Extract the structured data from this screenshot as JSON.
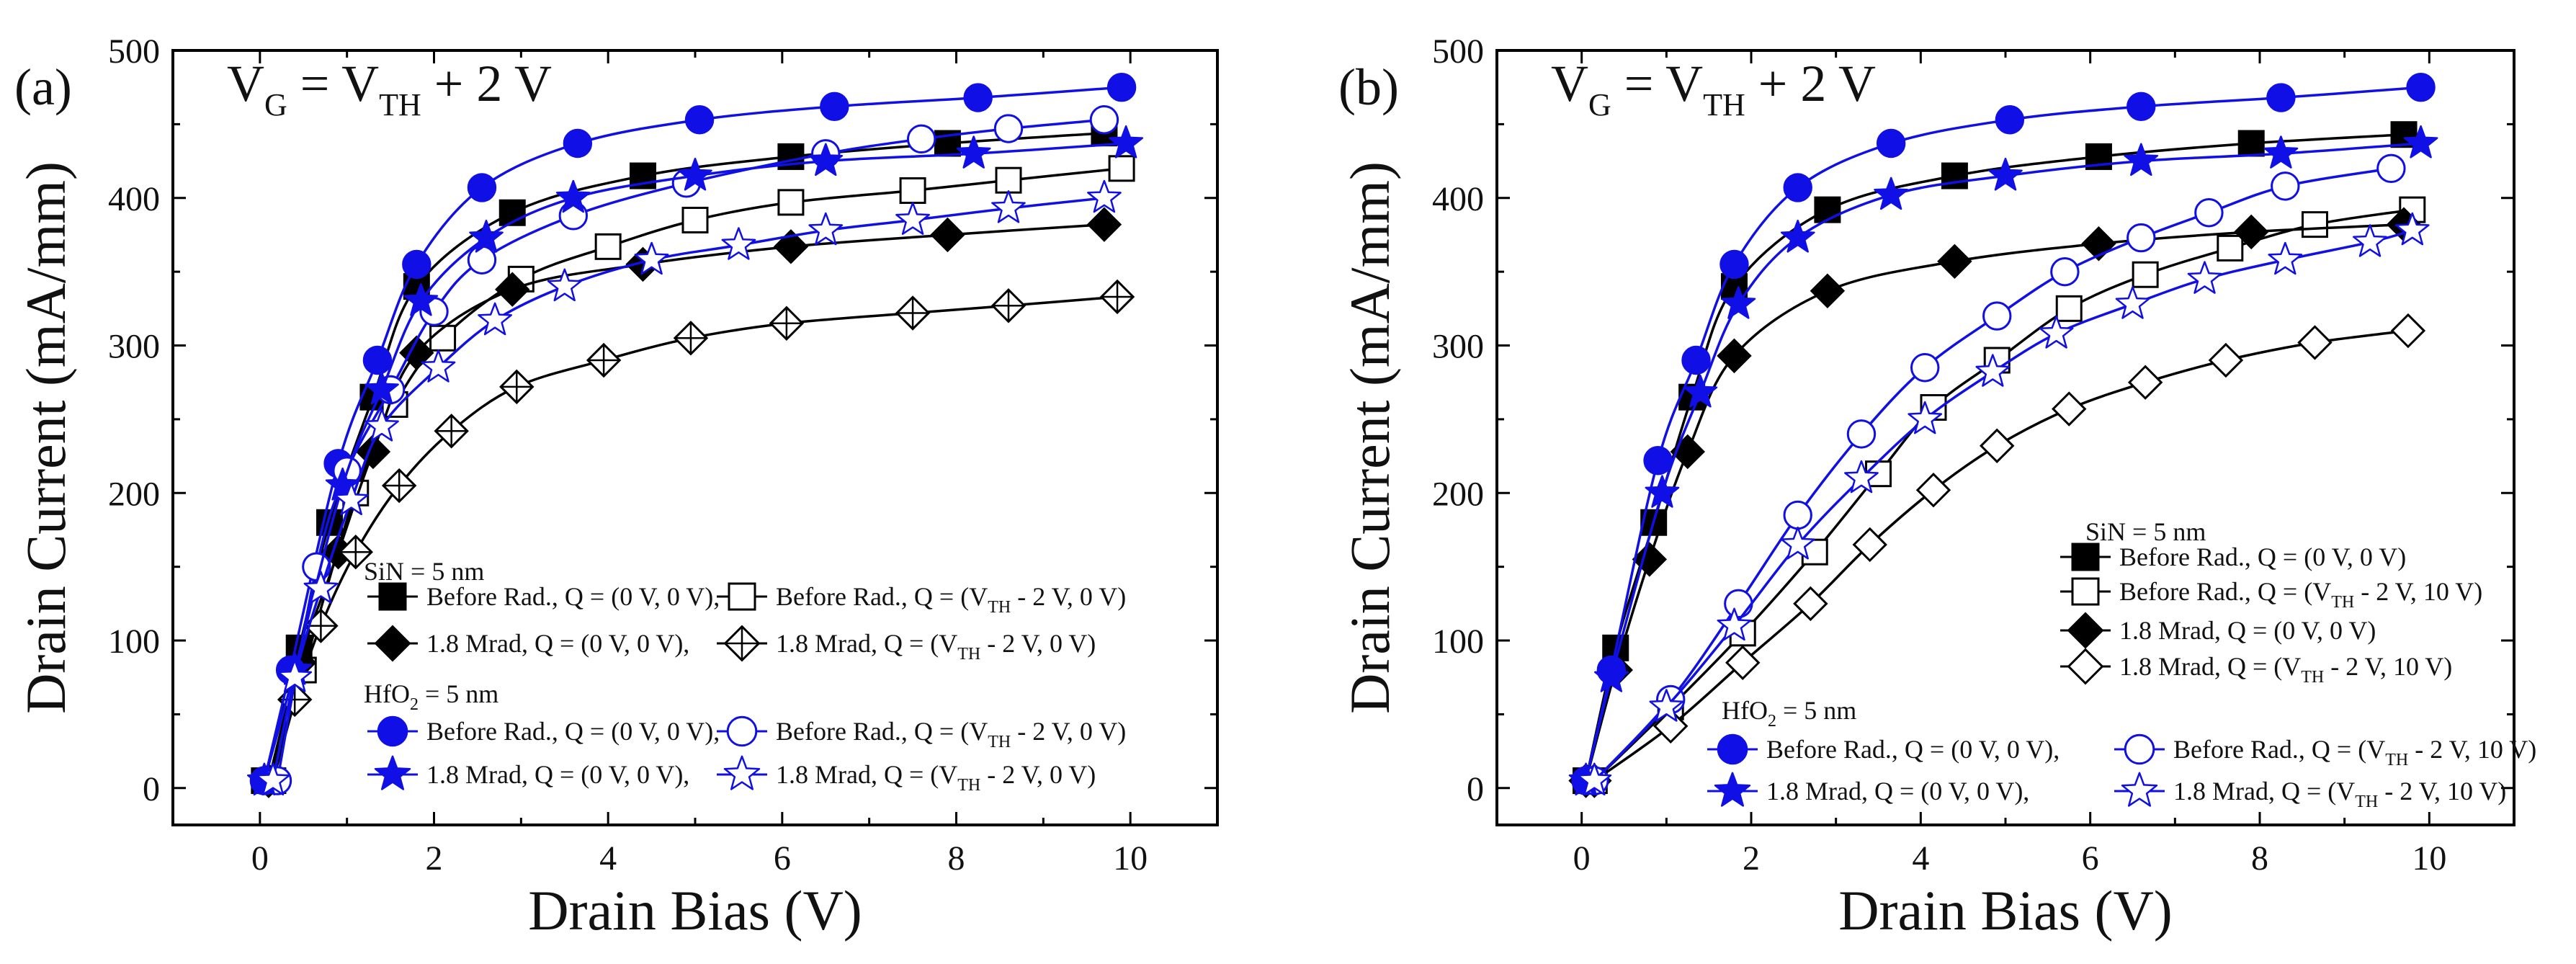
{
  "colors": {
    "black": "#000000",
    "blue": "#1010e6"
  },
  "chart_data": [
    {
      "type": "line",
      "panel": "(a)",
      "cond": {
        "pre": "V",
        "sub1": "G",
        "mid": " = V",
        "sub2": "TH",
        "post": " + 2 V"
      },
      "xlabel": "Drain Bias (V)",
      "ylabel": "Drain Current (mA/mm)",
      "xlim": [
        -1,
        11
      ],
      "ylim": [
        -25,
        500
      ],
      "xticks": [
        "0",
        "2",
        "4",
        "6",
        "8",
        "10"
      ],
      "yticks": [
        "0",
        "100",
        "200",
        "300",
        "400",
        "500"
      ],
      "legend": {
        "title1": "SiN = 5 nm",
        "title2": {
          "pre": "HfO",
          "sub": "2",
          "post": " = 5 nm"
        },
        "entries": [
          {
            "pre": "Before Rad., Q = (0 V, 0 V),",
            "sub": "",
            "post": ""
          },
          {
            "pre": "Before Rad., Q = (V",
            "sub": "TH",
            "post": " - 2 V, 0 V)"
          },
          {
            "pre": "1.8 Mrad, Q = (0 V, 0 V),",
            "sub": "",
            "post": ""
          },
          {
            "pre": "1.8 Mrad, Q = (V",
            "sub": "TH",
            "post": " - 2 V, 0 V)"
          },
          {
            "pre": "Before Rad., Q = (0 V, 0 V),",
            "sub": "",
            "post": ""
          },
          {
            "pre": "Before Rad., Q = (V",
            "sub": "TH",
            "post": " - 2 V, 0 V)"
          },
          {
            "pre": "1.8 Mrad, Q = (0 V, 0 V),",
            "sub": "",
            "post": ""
          },
          {
            "pre": "1.8 Mrad, Q = (V",
            "sub": "TH",
            "post": " - 2 V, 0 V)"
          }
        ]
      },
      "series": [
        {
          "name": "SiN Before Rad., Q = (0 V, 0 V)",
          "color": "black",
          "marker": "square",
          "filled": true,
          "x": [
            0.05,
            0.45,
            0.8,
            1.3,
            1.8,
            2.9,
            4.4,
            6.1,
            7.9,
            9.7
          ],
          "y": [
            5,
            95,
            180,
            265,
            340,
            390,
            415,
            428,
            437,
            444
          ]
        },
        {
          "name": "SiN Before Rad., Q = (VTH - 2 V, 0 V)",
          "color": "black",
          "marker": "square",
          "filled": false,
          "x": [
            0.15,
            0.5,
            1.1,
            1.55,
            2.1,
            3.0,
            4.0,
            5.0,
            6.1,
            7.5,
            8.6,
            9.9
          ],
          "y": [
            5,
            80,
            200,
            260,
            305,
            345,
            367,
            385,
            397,
            405,
            412,
            420
          ]
        },
        {
          "name": "SiN 1.8 Mrad, Q = (0 V, 0 V)",
          "color": "black",
          "marker": "diamond",
          "filled": true,
          "x": [
            0.1,
            0.45,
            0.9,
            1.3,
            1.8,
            2.9,
            4.4,
            6.1,
            7.9,
            9.7
          ],
          "y": [
            5,
            85,
            160,
            228,
            295,
            338,
            355,
            367,
            375,
            382
          ]
        },
        {
          "name": "SiN 1.8 Mrad, Q = (VTH - 2 V, 0 V)",
          "color": "black",
          "marker": "diamond-cross",
          "filled": false,
          "x": [
            0.1,
            0.4,
            0.7,
            1.1,
            1.6,
            2.2,
            2.95,
            3.95,
            4.95,
            6.05,
            7.5,
            8.6,
            9.85
          ],
          "y": [
            5,
            60,
            110,
            160,
            205,
            242,
            272,
            290,
            305,
            315,
            322,
            327,
            333
          ]
        },
        {
          "name": "HfO2 Before Rad., Q = (0 V, 0 V)",
          "color": "blue",
          "marker": "circle",
          "filled": true,
          "x": [
            0.05,
            0.35,
            0.9,
            1.35,
            1.8,
            2.55,
            3.65,
            5.05,
            6.6,
            8.25,
            9.9
          ],
          "y": [
            5,
            80,
            220,
            290,
            355,
            407,
            437,
            453,
            462,
            468,
            475
          ]
        },
        {
          "name": "HfO2 Before Rad., Q = (VTH - 2 V, 0 V)",
          "color": "blue",
          "marker": "circle",
          "filled": false,
          "x": [
            0.2,
            0.65,
            1.0,
            1.5,
            2.0,
            2.55,
            3.6,
            4.9,
            6.5,
            7.6,
            8.6,
            9.7
          ],
          "y": [
            5,
            150,
            215,
            270,
            323,
            358,
            388,
            410,
            430,
            440,
            447,
            453
          ]
        },
        {
          "name": "HfO2 1.8 Mrad, Q = (0 V, 0 V)",
          "color": "blue",
          "marker": "star",
          "filled": true,
          "x": [
            0.05,
            0.4,
            0.95,
            1.4,
            1.85,
            2.6,
            3.6,
            5.0,
            6.5,
            8.2,
            9.95
          ],
          "y": [
            5,
            80,
            205,
            270,
            330,
            373,
            400,
            415,
            425,
            430,
            437
          ]
        },
        {
          "name": "HfO2 1.8 Mrad, Q = (VTH - 2 V, 0 V)",
          "color": "blue",
          "marker": "star",
          "filled": false,
          "x": [
            0.15,
            0.4,
            0.7,
            1.05,
            1.4,
            2.05,
            2.7,
            3.5,
            4.5,
            5.5,
            6.5,
            7.5,
            8.6,
            9.7
          ],
          "y": [
            5,
            75,
            135,
            195,
            245,
            285,
            317,
            340,
            358,
            368,
            378,
            385,
            393,
            400
          ]
        }
      ]
    },
    {
      "type": "line",
      "panel": "(b)",
      "cond": {
        "pre": "V",
        "sub1": "G",
        "mid": " = V",
        "sub2": "TH",
        "post": " + 2 V"
      },
      "xlabel": "Drain Bias (V)",
      "ylabel": "Drain Current (mA/mm)",
      "xlim": [
        -1,
        11
      ],
      "ylim": [
        -25,
        500
      ],
      "xticks": [
        "0",
        "2",
        "4",
        "6",
        "8",
        "10"
      ],
      "yticks": [
        "0",
        "100",
        "200",
        "300",
        "400",
        "500"
      ],
      "legend": {
        "title1": "SiN = 5 nm",
        "title2": {
          "pre": "HfO",
          "sub": "2",
          "post": " = 5 nm"
        },
        "entries": [
          {
            "pre": "Before Rad., Q = (0 V, 0 V)",
            "sub": "",
            "post": ""
          },
          {
            "pre": "Before Rad., Q = (V",
            "sub": "TH",
            "post": " - 2 V, 10 V)"
          },
          {
            "pre": "1.8 Mrad, Q = (0 V, 0 V)",
            "sub": "",
            "post": ""
          },
          {
            "pre": "1.8 Mrad, Q = (V",
            "sub": "TH",
            "post": " - 2 V, 10 V)"
          },
          {
            "pre": "Before Rad., Q = (0 V, 0 V),",
            "sub": "",
            "post": ""
          },
          {
            "pre": "Before Rad., Q = (V",
            "sub": "TH",
            "post": " - 2 V, 10 V)"
          },
          {
            "pre": "1.8 Mrad, Q = (0 V, 0 V),",
            "sub": "",
            "post": ""
          },
          {
            "pre": "1.8 Mrad, Q = (V",
            "sub": "TH",
            "post": " - 2 V, 10 V)"
          }
        ]
      },
      "series": [
        {
          "name": "SiN Before Rad., Q = (0 V, 0 V)",
          "color": "black",
          "marker": "square",
          "filled": true,
          "x": [
            0.05,
            0.4,
            0.85,
            1.3,
            1.8,
            2.9,
            4.4,
            6.1,
            7.9,
            9.7
          ],
          "y": [
            5,
            95,
            180,
            265,
            340,
            392,
            415,
            428,
            437,
            443
          ]
        },
        {
          "name": "SiN Before Rad., Q = (VTH - 2 V, 10 V)",
          "color": "black",
          "marker": "square",
          "filled": false,
          "x": [
            0.15,
            1.05,
            1.9,
            2.75,
            3.5,
            4.15,
            4.9,
            5.75,
            6.65,
            7.65,
            8.65,
            9.8
          ],
          "y": [
            5,
            55,
            105,
            160,
            213,
            258,
            290,
            325,
            348,
            366,
            382,
            392
          ]
        },
        {
          "name": "SiN 1.8 Mrad, Q = (0 V, 0 V)",
          "color": "black",
          "marker": "diamond",
          "filled": true,
          "x": [
            0.05,
            0.4,
            0.8,
            1.25,
            1.8,
            2.9,
            4.4,
            6.1,
            7.9,
            9.7
          ],
          "y": [
            5,
            80,
            155,
            228,
            293,
            337,
            357,
            369,
            377,
            382
          ]
        },
        {
          "name": "SiN 1.8 Mrad, Q = (VTH - 2 V, 10 V)",
          "color": "black",
          "marker": "diamond",
          "filled": false,
          "x": [
            0.15,
            1.05,
            1.9,
            2.7,
            3.4,
            4.15,
            4.9,
            5.75,
            6.65,
            7.6,
            8.65,
            9.75
          ],
          "y": [
            5,
            42,
            85,
            125,
            165,
            202,
            232,
            257,
            275,
            290,
            302,
            310
          ]
        },
        {
          "name": "HfO2 Before Rad., Q = (0 V, 0 V)",
          "color": "blue",
          "marker": "circle",
          "filled": true,
          "x": [
            0.05,
            0.35,
            0.9,
            1.35,
            1.8,
            2.55,
            3.65,
            5.05,
            6.6,
            8.25,
            9.9
          ],
          "y": [
            5,
            80,
            222,
            290,
            355,
            407,
            437,
            453,
            462,
            468,
            475
          ]
        },
        {
          "name": "HfO2 Before Rad., Q = (VTH - 2 V, 10 V)",
          "color": "blue",
          "marker": "circle",
          "filled": false,
          "x": [
            0.15,
            1.05,
            1.85,
            2.55,
            3.3,
            4.05,
            4.9,
            5.7,
            6.6,
            7.4,
            8.3,
            9.55
          ],
          "y": [
            5,
            60,
            125,
            185,
            240,
            285,
            320,
            350,
            373,
            390,
            408,
            420
          ]
        },
        {
          "name": "HfO2 1.8 Mrad, Q = (0 V, 0 V)",
          "color": "blue",
          "marker": "star",
          "filled": true,
          "x": [
            0.05,
            0.35,
            0.95,
            1.4,
            1.85,
            2.55,
            3.65,
            5.0,
            6.6,
            8.25,
            9.9
          ],
          "y": [
            5,
            75,
            200,
            268,
            328,
            373,
            402,
            415,
            425,
            430,
            437
          ]
        },
        {
          "name": "HfO2 1.8 Mrad, Q = (VTH - 2 V, 10 V)",
          "color": "blue",
          "marker": "star",
          "filled": false,
          "x": [
            0.15,
            1.0,
            1.8,
            2.55,
            3.3,
            4.05,
            4.85,
            5.6,
            6.5,
            7.35,
            8.3,
            9.3,
            9.8
          ],
          "y": [
            5,
            55,
            110,
            165,
            210,
            250,
            282,
            308,
            328,
            345,
            358,
            370,
            378
          ]
        }
      ]
    }
  ]
}
